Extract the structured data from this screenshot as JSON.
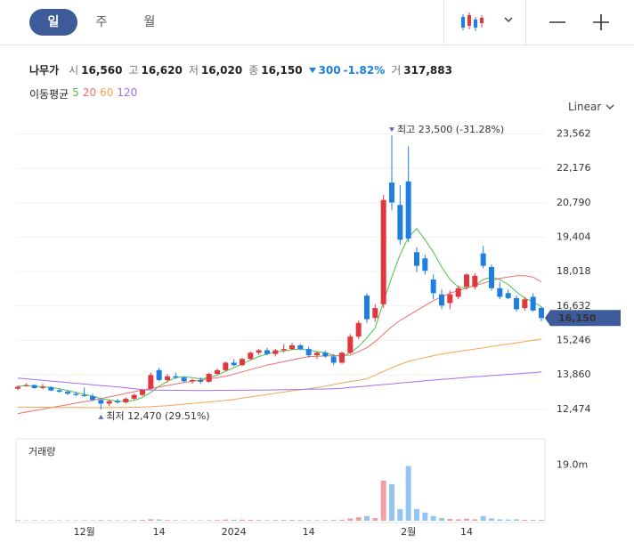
{
  "tabs": [
    "일",
    "주",
    "월"
  ],
  "quote": {
    "name": "나무가",
    "items": [
      {
        "label": "시",
        "value": "16,560"
      },
      {
        "label": "고",
        "value": "16,620"
      },
      {
        "label": "저",
        "value": "16,020"
      },
      {
        "label": "종",
        "value": "16,150"
      }
    ],
    "change": "300",
    "change_rate": "-1.82%",
    "volume_label": "거",
    "volume": "317,883"
  },
  "chart_data": {
    "type": "candlestick",
    "categories": [
      null,
      null,
      null,
      null,
      null,
      null,
      null,
      null,
      "12월",
      null,
      null,
      null,
      null,
      null,
      null,
      null,
      null,
      "14",
      null,
      null,
      null,
      null,
      null,
      null,
      null,
      null,
      "2024",
      null,
      null,
      null,
      null,
      null,
      null,
      null,
      null,
      "14",
      null,
      null,
      null,
      null,
      null,
      null,
      null,
      null,
      null,
      null,
      null,
      "2월",
      null,
      null,
      null,
      null,
      null,
      null,
      "14",
      null,
      null,
      null,
      null,
      null,
      null,
      null,
      null,
      null
    ],
    "open": [
      13300,
      13420,
      13450,
      13330,
      13360,
      13240,
      13180,
      13100,
      13050,
      13000,
      12850,
      12700,
      12800,
      12750,
      12900,
      13050,
      13300,
      14050,
      13650,
      13800,
      13750,
      13600,
      13650,
      13580,
      13900,
      14050,
      14350,
      14250,
      14500,
      14750,
      14850,
      14700,
      14850,
      14900,
      15050,
      14900,
      14650,
      14750,
      14600,
      14350,
      14750,
      15400,
      17050,
      16150,
      16700,
      21600,
      20700,
      21650,
      18800,
      18550,
      17700,
      17100,
      16750,
      17000,
      17400,
      17400,
      18750,
      18200,
      17350,
      17150,
      16950,
      16550,
      17000,
      16560
    ],
    "high": [
      13420,
      13520,
      13480,
      13500,
      13400,
      13300,
      13250,
      13180,
      13350,
      13100,
      12950,
      12850,
      12900,
      12950,
      13100,
      13300,
      13950,
      14150,
      13900,
      13950,
      13800,
      13700,
      13750,
      13950,
      14100,
      14400,
      14500,
      14550,
      14800,
      14900,
      14950,
      14900,
      15100,
      15150,
      15100,
      15000,
      14800,
      14850,
      14700,
      14800,
      15500,
      16050,
      17150,
      16700,
      21100,
      23500,
      21500,
      23060,
      19000,
      18700,
      17900,
      17300,
      17250,
      17450,
      17950,
      17950,
      19050,
      18300,
      17600,
      17300,
      17050,
      17000,
      17150,
      16620
    ],
    "low": [
      13250,
      13380,
      13300,
      13280,
      13200,
      13150,
      13050,
      13000,
      12980,
      12800,
      12470,
      12600,
      12700,
      12700,
      12850,
      13000,
      13250,
      13600,
      13550,
      13700,
      13550,
      13500,
      13500,
      13550,
      13850,
      14000,
      14200,
      14200,
      14450,
      14650,
      14650,
      14600,
      14750,
      14850,
      14850,
      14550,
      14500,
      14550,
      14250,
      14300,
      14700,
      15300,
      15950,
      16000,
      16550,
      20500,
      19100,
      19200,
      18000,
      17900,
      16900,
      16500,
      16500,
      16900,
      17300,
      17300,
      18150,
      17250,
      16900,
      16900,
      16400,
      16450,
      16400,
      16020
    ],
    "close": [
      13380,
      13450,
      13330,
      13380,
      13230,
      13180,
      13100,
      13050,
      13000,
      12850,
      12700,
      12800,
      12750,
      12900,
      13050,
      13250,
      13850,
      13650,
      13800,
      13750,
      13600,
      13650,
      13580,
      13900,
      14050,
      14350,
      14250,
      14500,
      14750,
      14850,
      14700,
      14850,
      14900,
      15050,
      14900,
      14650,
      14750,
      14600,
      14350,
      14750,
      15400,
      15950,
      16100,
      16550,
      20900,
      20800,
      19300,
      19350,
      18250,
      18050,
      17150,
      16650,
      17100,
      17350,
      17900,
      17850,
      18250,
      17350,
      17000,
      16950,
      16500,
      16900,
      16450,
      16150
    ],
    "up_color": "#e0383e",
    "down_color": "#1e7fe0",
    "scale": "Linear",
    "log_scale": false,
    "grid": true,
    "ylim": [
      12000,
      23900
    ],
    "yticks": [
      {
        "value": 12474,
        "label": "12,474"
      },
      {
        "value": 13860,
        "label": "13,860"
      },
      {
        "value": 15246,
        "label": "15,246"
      },
      {
        "value": 16632,
        "label": "16,632"
      },
      {
        "value": 18018,
        "label": "18,018"
      },
      {
        "value": 19404,
        "label": "19,404"
      },
      {
        "value": 20790,
        "label": "20,790"
      },
      {
        "value": 22176,
        "label": "22,176"
      },
      {
        "value": 23562,
        "label": "23,562"
      }
    ],
    "moving_averages": {
      "title": "이동평균",
      "series": [
        {
          "name": "5",
          "color": "#4cc24c",
          "values": [
            13400,
            13420,
            13410,
            13380,
            13350,
            13300,
            13230,
            13150,
            13080,
            13000,
            12900,
            12850,
            12800,
            12800,
            12830,
            12950,
            13150,
            13400,
            13600,
            13750,
            13780,
            13750,
            13700,
            13750,
            13850,
            14000,
            14150,
            14300,
            14450,
            14600,
            14700,
            14780,
            14820,
            14880,
            14900,
            14850,
            14800,
            14750,
            14650,
            14600,
            14750,
            15000,
            15350,
            15750,
            16800,
            17800,
            18700,
            19400,
            19750,
            19300,
            18800,
            18200,
            17700,
            17400,
            17350,
            17450,
            17700,
            17800,
            17700,
            17500,
            17200,
            16950,
            16800,
            16600
          ]
        },
        {
          "name": "20",
          "color": "#ef6f6f",
          "values": [
            12300,
            12360,
            12420,
            12480,
            12540,
            12600,
            12660,
            12720,
            12780,
            12840,
            12900,
            12970,
            13040,
            13110,
            13180,
            13250,
            13310,
            13370,
            13430,
            13490,
            13550,
            13600,
            13650,
            13700,
            13750,
            13800,
            13890,
            13980,
            14070,
            14160,
            14250,
            14320,
            14390,
            14460,
            14530,
            14600,
            14610,
            14620,
            14630,
            14640,
            14650,
            14800,
            14950,
            15200,
            15500,
            15800,
            16050,
            16250,
            16450,
            16650,
            16850,
            17000,
            17150,
            17250,
            17350,
            17450,
            17550,
            17650,
            17750,
            17800,
            17850,
            17850,
            17800,
            17600
          ]
        },
        {
          "name": "60",
          "color": "#f5a552",
          "values": [
            12560,
            12560,
            12555,
            12555,
            12550,
            12550,
            12545,
            12545,
            12540,
            12540,
            12540,
            12540,
            12545,
            12550,
            12555,
            12560,
            12580,
            12600,
            12620,
            12650,
            12680,
            12710,
            12740,
            12770,
            12800,
            12830,
            12870,
            12920,
            12970,
            13020,
            13070,
            13120,
            13170,
            13220,
            13260,
            13300,
            13350,
            13410,
            13470,
            13530,
            13590,
            13640,
            13700,
            13850,
            14000,
            14150,
            14280,
            14400,
            14480,
            14560,
            14630,
            14700,
            14750,
            14800,
            14850,
            14900,
            14950,
            15000,
            15050,
            15100,
            15150,
            15200,
            15250,
            15300
          ]
        },
        {
          "name": "120",
          "color": "#a070ee",
          "values": [
            13730,
            13700,
            13670,
            13640,
            13610,
            13580,
            13550,
            13520,
            13490,
            13460,
            13430,
            13400,
            13370,
            13340,
            13300,
            13260,
            13250,
            13240,
            13240,
            13235,
            13235,
            13230,
            13230,
            13230,
            13235,
            13235,
            13240,
            13240,
            13245,
            13245,
            13250,
            13255,
            13260,
            13265,
            13270,
            13280,
            13285,
            13290,
            13300,
            13320,
            13350,
            13380,
            13410,
            13440,
            13470,
            13500,
            13530,
            13560,
            13590,
            13620,
            13650,
            13680,
            13700,
            13730,
            13760,
            13780,
            13800,
            13830,
            13850,
            13880,
            13900,
            13930,
            13950,
            13980
          ]
        }
      ]
    },
    "annotations": [
      {
        "text": "최고 23,500 (-31.28%)",
        "value": 23500
      },
      {
        "text": "최저 12,470 (29.51%)",
        "value": 12470
      }
    ],
    "last_price": {
      "value": 16150,
      "label": "16,150"
    },
    "volume": {
      "title": "거래량",
      "ylim": [
        0,
        28000000
      ],
      "yticks": [
        {
          "value": 19000000,
          "label": "19.0m"
        }
      ],
      "up_color": "#f2a0a5",
      "down_color": "#93c5f2",
      "values": [
        200000,
        150000,
        180000,
        160000,
        150000,
        170000,
        140000,
        160000,
        200000,
        180000,
        250000,
        200000,
        150000,
        180000,
        220000,
        300000,
        500000,
        450000,
        250000,
        200000,
        180000,
        160000,
        150000,
        200000,
        250000,
        400000,
        350000,
        380000,
        300000,
        250000,
        220000,
        250000,
        280000,
        300000,
        260000,
        220000,
        200000,
        240000,
        280000,
        350000,
        800000,
        1200000,
        1600000,
        900000,
        13700000,
        12500000,
        4000000,
        18700000,
        4000000,
        2800000,
        1600000,
        900000,
        600000,
        500000,
        700000,
        500000,
        1600000,
        800000,
        500000,
        400000,
        500000,
        300000,
        300000,
        317883
      ]
    }
  }
}
